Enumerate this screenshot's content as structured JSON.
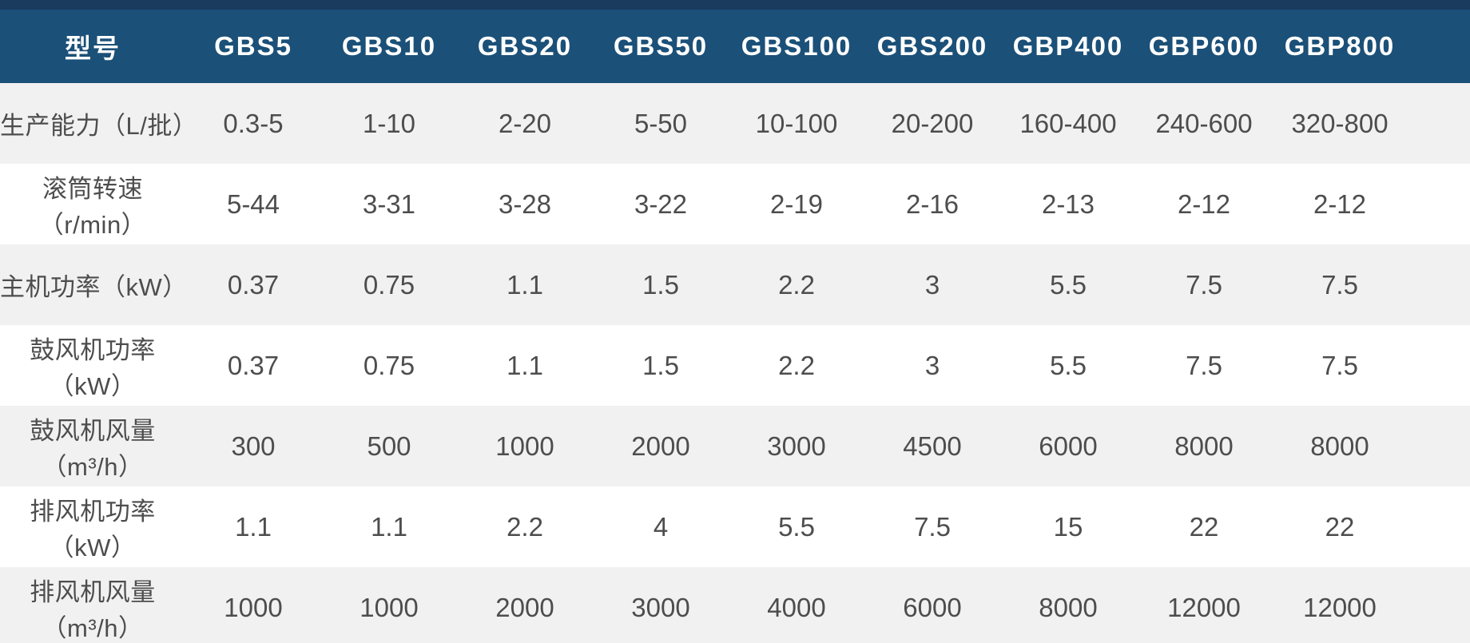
{
  "chart_data": {
    "type": "table",
    "header": {
      "first_col": "型号",
      "models": [
        "GBS5",
        "GBS10",
        "GBS20",
        "GBS50",
        "GBS100",
        "GBS200",
        "GBP400",
        "GBP600",
        "GBP800"
      ]
    },
    "rows": [
      {
        "label": "生产能力（L/批）",
        "values": [
          "0.3-5",
          "1-10",
          "2-20",
          "5-50",
          "10-100",
          "20-200",
          "160-400",
          "240-600",
          "320-800"
        ]
      },
      {
        "label": "滚筒转速（r/min）",
        "values": [
          "5-44",
          "3-31",
          "3-28",
          "3-22",
          "2-19",
          "2-16",
          "2-13",
          "2-12",
          "2-12"
        ]
      },
      {
        "label": "主机功率（kW）",
        "values": [
          "0.37",
          "0.75",
          "1.1",
          "1.5",
          "2.2",
          "3",
          "5.5",
          "7.5",
          "7.5"
        ]
      },
      {
        "label": "鼓风机功率（kW）",
        "values": [
          "0.37",
          "0.75",
          "1.1",
          "1.5",
          "2.2",
          "3",
          "5.5",
          "7.5",
          "7.5"
        ]
      },
      {
        "label": "鼓风机风量（m³/h）",
        "values": [
          "300",
          "500",
          "1000",
          "2000",
          "3000",
          "4500",
          "6000",
          "8000",
          "8000"
        ]
      },
      {
        "label": "排风机功率（kW）",
        "values": [
          "1.1",
          "1.1",
          "2.2",
          "4",
          "5.5",
          "7.5",
          "15",
          "22",
          "22"
        ]
      },
      {
        "label": "排风机风量（m³/h）",
        "values": [
          "1000",
          "1000",
          "2000",
          "3000",
          "4000",
          "6000",
          "8000",
          "12000",
          "12000"
        ]
      }
    ]
  },
  "colors": {
    "header_bg": "#1b5078",
    "header_top_strip": "#1a3a5e",
    "header_text": "#ffffff",
    "row_alt_bg": "#f1f1f1",
    "row_bg": "#ffffff",
    "body_text": "#4d4d4d"
  }
}
